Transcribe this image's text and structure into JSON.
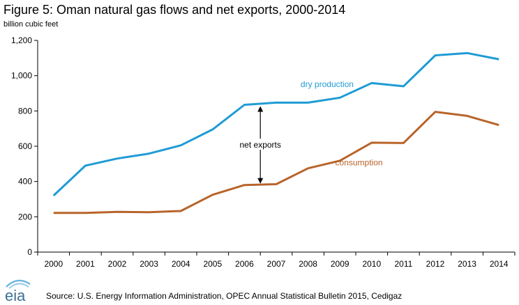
{
  "title": "Figure 5: Oman natural gas flows and net exports, 2000-2014",
  "subtitle": "billion cubic feet",
  "source": "Source: U.S. Energy Information  Administration,  OPEC Annual Statistical Bulletin 2015,  Cedigaz",
  "logo_text": "eia",
  "colors": {
    "dry_production": "#1f9bd5",
    "consumption": "#b8642a",
    "axis": "#000000"
  },
  "chart_data": {
    "type": "line",
    "title": "Figure 5: Oman natural gas flows and net exports, 2000-2014",
    "ylabel": "billion cubic feet",
    "xlabel": "",
    "ylim": [
      0,
      1200
    ],
    "y_ticks": [
      "0",
      "200",
      "400",
      "600",
      "800",
      "1,000",
      "1,200"
    ],
    "y_tick_values": [
      0,
      200,
      400,
      600,
      800,
      1000,
      1200
    ],
    "categories": [
      "2000",
      "2001",
      "2002",
      "2003",
      "2004",
      "2005",
      "2006",
      "2007",
      "2008",
      "2009",
      "2010",
      "2011",
      "2012",
      "2013",
      "2014"
    ],
    "grid": false,
    "series": [
      {
        "name": "dry production",
        "values": [
          320,
          490,
          530,
          558,
          605,
          695,
          835,
          847,
          847,
          875,
          958,
          940,
          1115,
          1128,
          1093
        ]
      },
      {
        "name": "consumption",
        "values": [
          222,
          222,
          228,
          226,
          233,
          325,
          380,
          385,
          475,
          518,
          620,
          618,
          795,
          772,
          720
        ]
      }
    ],
    "annotations": [
      {
        "text": "net exports",
        "year": "2006",
        "from": 380,
        "to": 835
      }
    ]
  }
}
